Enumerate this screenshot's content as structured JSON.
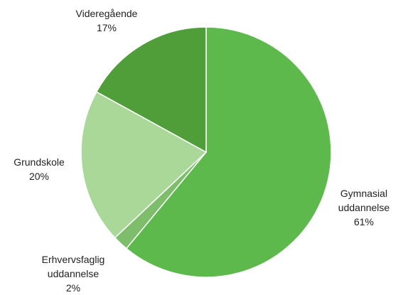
{
  "chart_data": {
    "type": "pie",
    "categories": [
      "Gymnasial uddannelse",
      "Erhvervsfaglig uddannelse",
      "Grundskole",
      "Videregående"
    ],
    "values": [
      61,
      2,
      20,
      17
    ],
    "value_labels": [
      "61%",
      "2%",
      "20%",
      "17%"
    ],
    "colors": [
      "#5db94b",
      "#7dbd6b",
      "#a9d899",
      "#4f9e3a"
    ]
  }
}
